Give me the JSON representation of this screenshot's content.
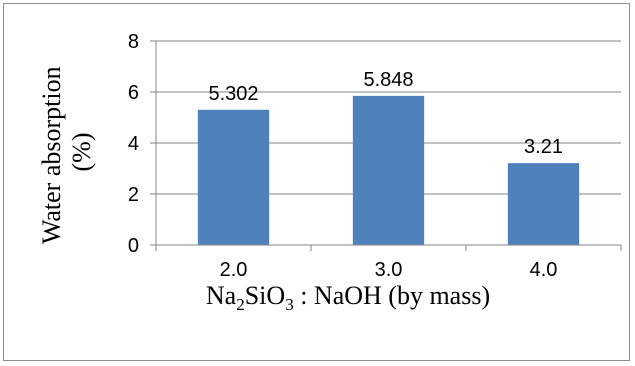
{
  "chart_data": {
    "type": "bar",
    "categories": [
      "2.0",
      "3.0",
      "4.0"
    ],
    "values": [
      5.302,
      5.848,
      3.21
    ],
    "data_labels": [
      "5.302",
      "5.848",
      "3.21"
    ],
    "series": [
      {
        "values": [
          5.302,
          5.848,
          3.21
        ],
        "color": "#4F81BD"
      }
    ],
    "ylim": [
      0,
      8
    ],
    "yticks": [
      "0",
      "2",
      "4",
      "6",
      "8"
    ],
    "ytick_values": [
      0,
      2,
      4,
      6,
      8
    ],
    "ylabel_line1": "Water absorption",
    "ylabel_line2": "(%)",
    "xlabel": {
      "pre": "Na",
      "sub1": "2",
      "mid": "SiO",
      "sub2": "3",
      "post": " : NaOH (by mass)"
    },
    "grid": true,
    "legend": "none",
    "colors": {
      "bar": "#4F81BD",
      "grid": "#868686",
      "axis": "#868686"
    }
  }
}
